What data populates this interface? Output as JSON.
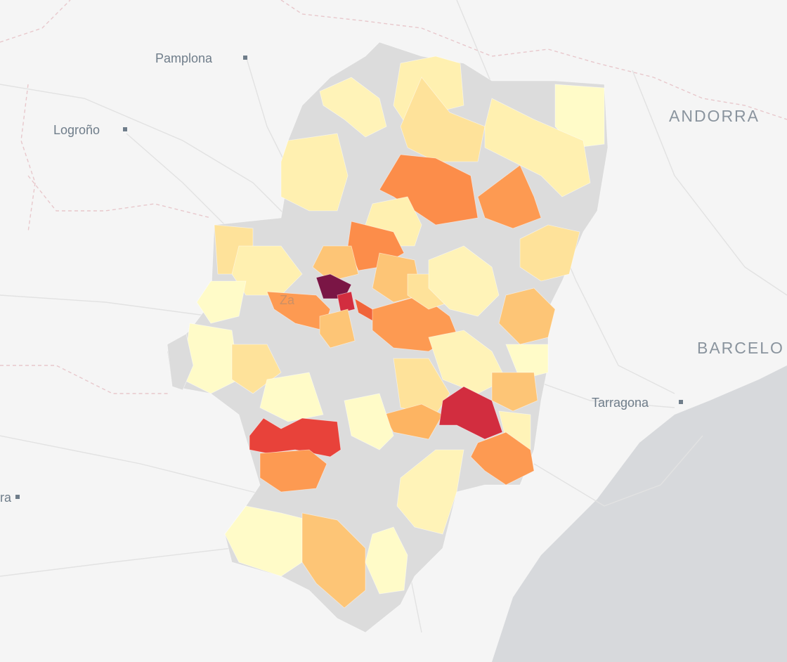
{
  "map": {
    "labels": [
      "Pamplona",
      "Logroño",
      "ANDORRA",
      "BARCELO",
      "Tarragona",
      "ra",
      "Za"
    ]
  }
}
